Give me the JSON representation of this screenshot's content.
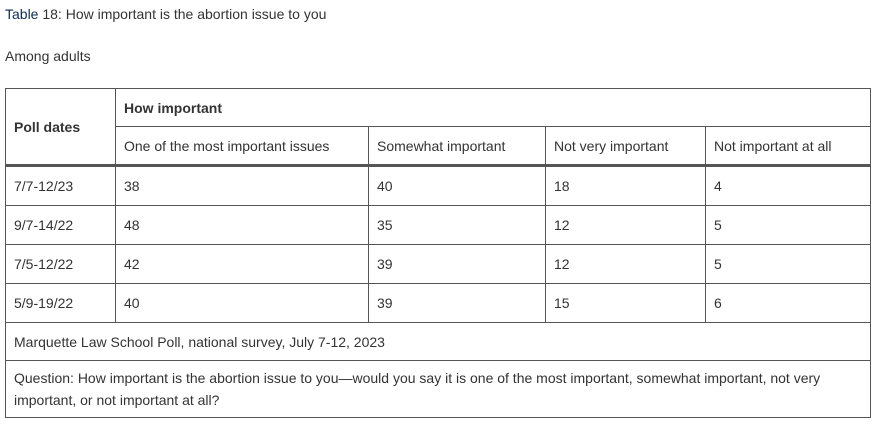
{
  "caption": {
    "label": "Table",
    "text": " 18: How important is the abortion issue to you"
  },
  "subtitle": "Among adults",
  "table": {
    "header_col1": "Poll dates",
    "header_group": "How important",
    "columns": [
      "One of the most important issues",
      "Somewhat important",
      "Not very important",
      "Not important at all"
    ],
    "rows": [
      {
        "date": "7/7-12/23",
        "values": [
          "38",
          "40",
          "18",
          "4"
        ]
      },
      {
        "date": "9/7-14/22",
        "values": [
          "48",
          "35",
          "12",
          "5"
        ]
      },
      {
        "date": "7/5-12/22",
        "values": [
          "42",
          "39",
          "12",
          "5"
        ]
      },
      {
        "date": "5/9-19/22",
        "values": [
          "40",
          "39",
          "15",
          "6"
        ]
      }
    ],
    "source": "Marquette Law School Poll, national survey, July 7-12, 2023",
    "question": "Question: How important is the abortion issue to you—would you say it is one of the most important, somewhat important, not very important, or not important at all?"
  },
  "colors": {
    "text": "#333333",
    "caption_label": "#0d2b52",
    "border": "#555555"
  }
}
